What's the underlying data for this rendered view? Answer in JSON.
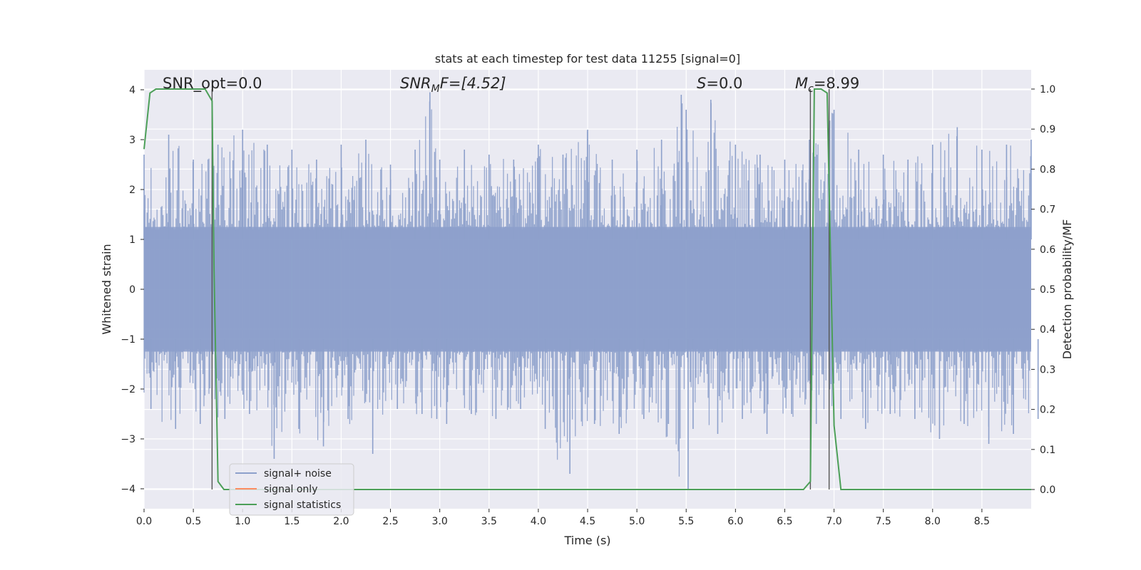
{
  "chart_data": {
    "type": "line",
    "title": "stats at each timestep for test data 11255 [signal=0]",
    "xlabel": "Time (s)",
    "ylabel": "Whitened strain",
    "y2label": "Detection probability/MF",
    "xlim": [
      0.0,
      9.0
    ],
    "ylim": [
      -4.4,
      4.4
    ],
    "y2lim": [
      -0.048,
      1.048
    ],
    "x_ticks": [
      0.0,
      0.5,
      1.0,
      1.5,
      2.0,
      2.5,
      3.0,
      3.5,
      4.0,
      4.5,
      5.0,
      5.5,
      6.0,
      6.5,
      7.0,
      7.5,
      8.0,
      8.5
    ],
    "x_tick_labels": [
      "0.0",
      "0.5",
      "1.0",
      "1.5",
      "2.0",
      "2.5",
      "3.0",
      "3.5",
      "4.0",
      "4.5",
      "5.0",
      "5.5",
      "6.0",
      "6.5",
      "7.0",
      "7.5",
      "8.0",
      "8.5"
    ],
    "y_ticks": [
      -4,
      -3,
      -2,
      -1,
      0,
      1,
      2,
      3,
      4
    ],
    "y_tick_labels": [
      "−4",
      "−3",
      "−2",
      "−1",
      "0",
      "1",
      "2",
      "3",
      "4"
    ],
    "y2_ticks": [
      0.0,
      0.1,
      0.2,
      0.3,
      0.4,
      0.5,
      0.6,
      0.7,
      0.8,
      0.9,
      1.0
    ],
    "y2_tick_labels": [
      "0.0",
      "0.1",
      "0.2",
      "0.3",
      "0.4",
      "0.5",
      "0.6",
      "0.7",
      "0.8",
      "0.9",
      "1.0"
    ],
    "grid": true,
    "legend_position": "lower-left",
    "series": [
      {
        "name": "signal+ noise",
        "color": "#8da0cb",
        "description_axis": "left",
        "envelope": {
          "x": [
            0.0,
            0.25,
            0.5,
            0.75,
            1.0,
            1.25,
            1.5,
            1.75,
            2.0,
            2.25,
            2.5,
            2.75,
            2.9,
            3.0,
            3.25,
            3.5,
            3.75,
            4.0,
            4.25,
            4.5,
            4.75,
            5.0,
            5.25,
            5.45,
            5.5,
            5.75,
            6.0,
            6.25,
            6.5,
            6.75,
            7.0,
            7.25,
            7.5,
            7.75,
            8.0,
            8.25,
            8.5,
            8.75,
            9.0
          ],
          "upper": [
            2.7,
            3.1,
            2.6,
            2.9,
            3.2,
            2.9,
            2.8,
            2.6,
            2.9,
            3.0,
            2.5,
            2.8,
            3.95,
            2.6,
            2.8,
            2.7,
            2.6,
            2.9,
            2.7,
            3.2,
            2.6,
            2.8,
            3.0,
            3.9,
            3.6,
            3.8,
            2.9,
            2.7,
            2.6,
            3.0,
            3.6,
            2.8,
            2.7,
            2.6,
            2.9,
            3.25,
            2.8,
            2.9,
            3.0
          ],
          "lower": [
            -2.4,
            -2.8,
            -2.7,
            -2.6,
            -2.5,
            -3.4,
            -2.8,
            -3.15,
            -2.6,
            -3.3,
            -2.4,
            -2.5,
            -2.6,
            -2.7,
            -2.5,
            -2.6,
            -2.4,
            -2.8,
            -3.7,
            -2.7,
            -2.9,
            -2.6,
            -2.7,
            -4.0,
            -2.8,
            -2.9,
            -2.6,
            -2.9,
            -2.5,
            -2.7,
            -2.6,
            -2.8,
            -2.5,
            -2.6,
            -3.0,
            -2.7,
            -3.1,
            -2.9,
            -2.6
          ]
        }
      },
      {
        "name": "signal only",
        "color": "#fc8d62",
        "points": []
      },
      {
        "name": "signal statistics",
        "color": "#4c9f58",
        "axis": "right",
        "x": [
          0.0,
          0.06,
          0.12,
          0.3,
          0.5,
          0.62,
          0.69,
          0.71,
          0.75,
          0.81,
          0.9,
          3.0,
          6.0,
          6.69,
          6.76,
          6.8,
          6.87,
          6.93,
          7.0,
          7.07,
          7.2,
          8.0,
          9.0
        ],
        "y": [
          0.85,
          0.99,
          1.0,
          1.0,
          1.0,
          1.0,
          0.97,
          0.55,
          0.02,
          0.0,
          0.0,
          0.0,
          0.0,
          0.0,
          0.02,
          1.0,
          1.0,
          0.99,
          0.16,
          0.0,
          0.0,
          0.0,
          0.0
        ]
      }
    ],
    "vlines": [
      0.69,
      6.76,
      6.95
    ],
    "annotations": [
      {
        "text": "SNR_opt=0.0",
        "x": 0.2,
        "y_frac_axis": 1.0
      },
      {
        "text_main": "SNR",
        "text_sub": "M",
        "text_tail": "F=[4.52]",
        "x": 2.6,
        "italic_main": true
      },
      {
        "text_main": "S",
        "text_tail": "=0.0",
        "x": 5.6,
        "italic_main": true
      },
      {
        "text_main": "M",
        "text_sub": "c",
        "text_tail": "=8.99",
        "x": 6.6,
        "italic_main": true
      }
    ]
  }
}
